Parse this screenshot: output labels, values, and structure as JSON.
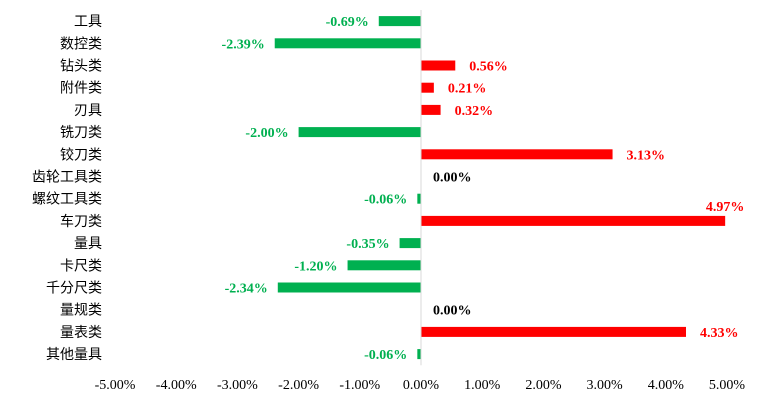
{
  "chart_data": {
    "type": "bar",
    "orientation": "horizontal",
    "categories": [
      "工具",
      "数控类",
      "钻头类",
      "附件类",
      "刃具",
      "铣刀类",
      "铰刀类",
      "齿轮工具类",
      "螺纹工具类",
      "车刀类",
      "量具",
      "卡尺类",
      "千分尺类",
      "量规类",
      "量表类",
      "其他量具"
    ],
    "values": [
      -0.69,
      -2.39,
      0.56,
      0.21,
      0.32,
      -2.0,
      3.13,
      0.0,
      -0.06,
      4.97,
      -0.35,
      -1.2,
      -2.34,
      0.0,
      4.33,
      -0.06
    ],
    "value_labels": [
      "-0.69%",
      "-2.39%",
      "0.56%",
      "0.21%",
      "0.32%",
      "-2.00%",
      "3.13%",
      "0.00%",
      "-0.06%",
      "4.97%",
      "-0.35%",
      "-1.20%",
      "-2.34%",
      "0.00%",
      "4.33%",
      "-0.06%"
    ],
    "xlim": [
      -5,
      5
    ],
    "x_ticks": [
      -5,
      -4,
      -3,
      -2,
      -1,
      0,
      1,
      2,
      3,
      4,
      5
    ],
    "x_tick_labels": [
      "-5.00%",
      "-4.00%",
      "-3.00%",
      "-2.00%",
      "-1.00%",
      "0.00%",
      "1.00%",
      "2.00%",
      "3.00%",
      "4.00%",
      "5.00%"
    ],
    "title": "",
    "xlabel": "",
    "ylabel": "",
    "grid": false,
    "colors": {
      "positive": "#ff0000",
      "negative": "#00b050",
      "zero": "#000000",
      "axis": "#d9d9d9"
    }
  }
}
